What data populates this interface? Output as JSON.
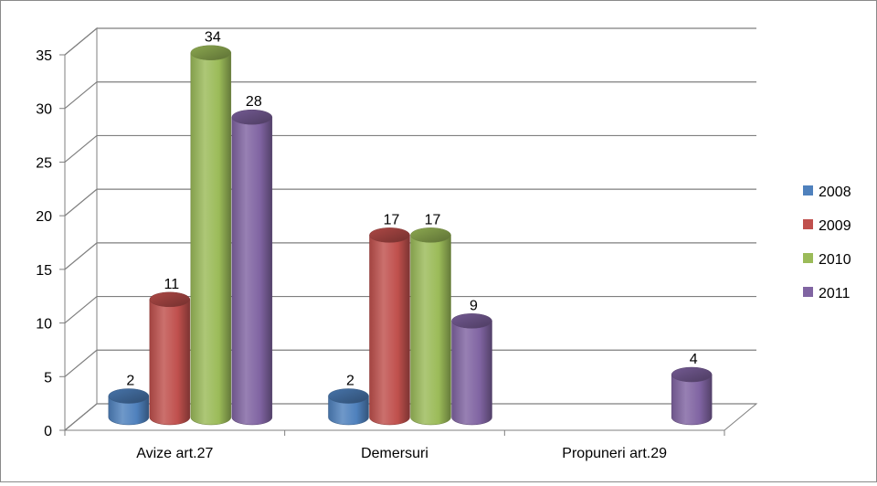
{
  "chart_data": {
    "type": "bar",
    "style": "3d-cylinder",
    "categories": [
      "Avize  art.27",
      "Demersuri",
      "Propuneri art.29"
    ],
    "series": [
      {
        "name": "2008",
        "values": [
          2,
          2,
          null
        ],
        "color": "#4f81bd"
      },
      {
        "name": "2009",
        "values": [
          11,
          17,
          null
        ],
        "color": "#c0504d"
      },
      {
        "name": "2010",
        "values": [
          34,
          17,
          null
        ],
        "color": "#9bbb59"
      },
      {
        "name": "2011",
        "values": [
          28,
          9,
          4
        ],
        "color": "#8064a2"
      }
    ],
    "data_labels": true,
    "ylim": [
      0,
      35
    ],
    "yticks": [
      0,
      5,
      10,
      15,
      20,
      25,
      30,
      35
    ],
    "grid": true,
    "legend": "right"
  }
}
